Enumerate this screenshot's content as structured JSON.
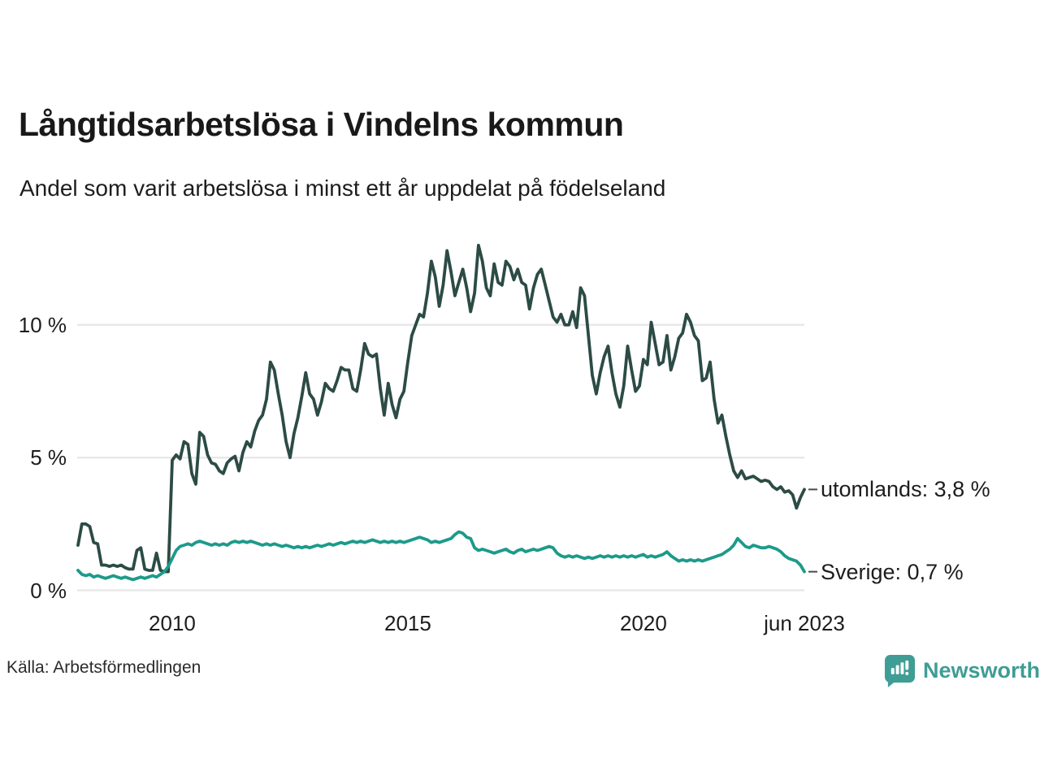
{
  "header": {
    "title": "Långtidsarbetslösa i Vindelns kommun",
    "subtitle": "Andel som varit arbetslösa i minst ett år uppdelat på födelseland"
  },
  "footer": {
    "source": "Källa: Arbetsförmedlingen",
    "brand_name": "Newsworthy",
    "brand_color": "#3f9d95"
  },
  "chart_data": {
    "type": "line",
    "unit": "%",
    "frequency": "monthly",
    "x_start": "2008-01",
    "x_end": "2023-06",
    "ylim": [
      0,
      13.2
    ],
    "grid": true,
    "grid_color": "#e8e8ea",
    "tick_dash_color": "#4a4a4a",
    "y_ticks": [
      {
        "value": 0,
        "label": "0 %"
      },
      {
        "value": 5,
        "label": "5 %"
      },
      {
        "value": 10,
        "label": "10 %"
      }
    ],
    "x_ticks": [
      {
        "month_index": 24,
        "label": "2010"
      },
      {
        "month_index": 84,
        "label": "2015"
      },
      {
        "month_index": 144,
        "label": "2020"
      },
      {
        "month_index": 185,
        "label": "jun 2023"
      }
    ],
    "series": [
      {
        "name": "utomlands",
        "end_label": "utomlands: 3,8 %",
        "last_value_text": "3,8 %",
        "color": "#2c4b45",
        "values": [
          1.7,
          2.5,
          2.5,
          2.4,
          1.8,
          1.75,
          0.95,
          0.95,
          0.9,
          0.95,
          0.9,
          0.95,
          0.85,
          0.8,
          0.8,
          1.5,
          1.6,
          0.8,
          0.75,
          0.75,
          1.4,
          0.75,
          0.7,
          0.7,
          4.9,
          5.1,
          4.95,
          5.6,
          5.5,
          4.4,
          4.0,
          5.95,
          5.8,
          5.1,
          4.8,
          4.75,
          4.5,
          4.4,
          4.8,
          4.95,
          5.05,
          4.5,
          5.2,
          5.6,
          5.4,
          6.0,
          6.4,
          6.6,
          7.2,
          8.6,
          8.3,
          7.4,
          6.6,
          5.6,
          5.0,
          5.9,
          6.5,
          7.3,
          8.2,
          7.4,
          7.2,
          6.6,
          7.1,
          7.8,
          7.6,
          7.5,
          7.9,
          8.4,
          8.3,
          8.3,
          7.6,
          7.5,
          8.3,
          9.3,
          8.9,
          8.8,
          8.9,
          7.6,
          6.6,
          7.8,
          7.0,
          6.5,
          7.2,
          7.5,
          8.6,
          9.6,
          10.0,
          10.4,
          10.3,
          11.2,
          12.4,
          11.8,
          10.7,
          11.5,
          12.8,
          12.0,
          11.1,
          11.6,
          12.1,
          11.4,
          10.5,
          11.2,
          13.0,
          12.4,
          11.4,
          11.1,
          12.3,
          11.6,
          11.5,
          12.4,
          12.2,
          11.7,
          12.1,
          11.6,
          11.5,
          10.6,
          11.4,
          11.9,
          12.1,
          11.5,
          10.9,
          10.3,
          10.1,
          10.4,
          10.0,
          10.0,
          10.5,
          9.9,
          11.4,
          11.1,
          9.6,
          8.1,
          7.4,
          8.2,
          8.8,
          9.2,
          8.2,
          7.4,
          6.9,
          7.7,
          9.2,
          8.3,
          7.5,
          7.7,
          8.7,
          8.5,
          10.1,
          9.3,
          8.5,
          8.6,
          9.6,
          8.3,
          8.8,
          9.5,
          9.7,
          10.4,
          10.1,
          9.6,
          9.4,
          7.9,
          8.0,
          8.6,
          7.2,
          6.3,
          6.6,
          5.8,
          5.1,
          4.5,
          4.25,
          4.5,
          4.2,
          4.25,
          4.3,
          4.2,
          4.1,
          4.15,
          4.1,
          3.9,
          3.8,
          3.9,
          3.7,
          3.75,
          3.6,
          3.1,
          3.5,
          3.8
        ]
      },
      {
        "name": "Sverige",
        "end_label": "Sverige: 0,7 %",
        "last_value_text": "0,7 %",
        "color": "#1d9a8a",
        "values": [
          0.75,
          0.6,
          0.55,
          0.6,
          0.5,
          0.55,
          0.5,
          0.45,
          0.5,
          0.55,
          0.5,
          0.45,
          0.5,
          0.45,
          0.4,
          0.45,
          0.5,
          0.45,
          0.5,
          0.55,
          0.5,
          0.6,
          0.7,
          0.9,
          1.2,
          1.5,
          1.65,
          1.7,
          1.75,
          1.7,
          1.8,
          1.85,
          1.8,
          1.75,
          1.7,
          1.75,
          1.7,
          1.75,
          1.7,
          1.8,
          1.85,
          1.8,
          1.85,
          1.8,
          1.85,
          1.8,
          1.75,
          1.7,
          1.75,
          1.7,
          1.75,
          1.7,
          1.65,
          1.7,
          1.65,
          1.6,
          1.65,
          1.6,
          1.65,
          1.6,
          1.65,
          1.7,
          1.65,
          1.7,
          1.75,
          1.7,
          1.75,
          1.8,
          1.75,
          1.8,
          1.85,
          1.8,
          1.85,
          1.8,
          1.85,
          1.9,
          1.85,
          1.8,
          1.85,
          1.8,
          1.85,
          1.8,
          1.85,
          1.8,
          1.85,
          1.9,
          1.95,
          2.0,
          1.95,
          1.9,
          1.8,
          1.85,
          1.8,
          1.85,
          1.9,
          1.95,
          2.1,
          2.2,
          2.15,
          2.0,
          1.95,
          1.6,
          1.5,
          1.55,
          1.5,
          1.45,
          1.4,
          1.45,
          1.5,
          1.55,
          1.45,
          1.4,
          1.5,
          1.55,
          1.45,
          1.5,
          1.55,
          1.5,
          1.55,
          1.6,
          1.65,
          1.6,
          1.4,
          1.3,
          1.25,
          1.3,
          1.25,
          1.3,
          1.25,
          1.2,
          1.25,
          1.2,
          1.25,
          1.3,
          1.25,
          1.3,
          1.25,
          1.3,
          1.25,
          1.3,
          1.25,
          1.3,
          1.25,
          1.3,
          1.35,
          1.25,
          1.3,
          1.25,
          1.3,
          1.35,
          1.45,
          1.3,
          1.2,
          1.1,
          1.15,
          1.1,
          1.15,
          1.1,
          1.15,
          1.1,
          1.15,
          1.2,
          1.25,
          1.3,
          1.35,
          1.45,
          1.55,
          1.7,
          1.95,
          1.8,
          1.65,
          1.6,
          1.7,
          1.65,
          1.6,
          1.6,
          1.65,
          1.6,
          1.55,
          1.45,
          1.3,
          1.2,
          1.15,
          1.1,
          0.95,
          0.7
        ]
      }
    ]
  }
}
